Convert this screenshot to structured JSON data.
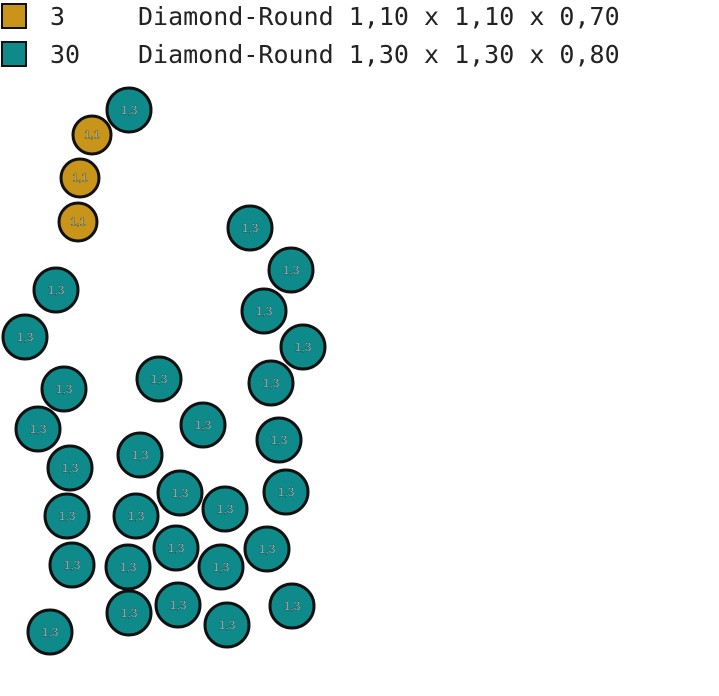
{
  "legend": [
    {
      "count": "3",
      "description": "Diamond-Round 1,10 x 1,10 x 0,70",
      "color": "#c8951a",
      "stone_label": "1,1"
    },
    {
      "count": "30",
      "description": "Diamond-Round 1,30 x 1,30 x 0,80",
      "color": "#0f8a8a",
      "stone_label": "1,3"
    }
  ],
  "stones": {
    "small_count": 3,
    "large_count": 30,
    "outline_color": "#111111"
  }
}
